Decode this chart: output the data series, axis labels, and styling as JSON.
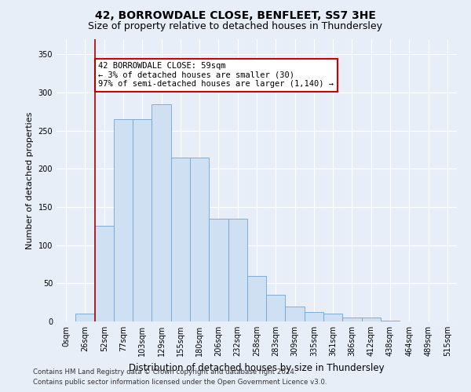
{
  "title": "42, BORROWDALE CLOSE, BENFLEET, SS7 3HE",
  "subtitle": "Size of property relative to detached houses in Thundersley",
  "xlabel": "Distribution of detached houses by size in Thundersley",
  "ylabel": "Number of detached properties",
  "footnote1": "Contains HM Land Registry data © Crown copyright and database right 2024.",
  "footnote2": "Contains public sector information licensed under the Open Government Licence v3.0.",
  "bar_labels": [
    "0sqm",
    "26sqm",
    "52sqm",
    "77sqm",
    "103sqm",
    "129sqm",
    "155sqm",
    "180sqm",
    "206sqm",
    "232sqm",
    "258sqm",
    "283sqm",
    "309sqm",
    "335sqm",
    "361sqm",
    "386sqm",
    "412sqm",
    "438sqm",
    "464sqm",
    "489sqm",
    "515sqm"
  ],
  "bar_values": [
    0,
    10,
    125,
    265,
    265,
    285,
    215,
    215,
    135,
    135,
    60,
    35,
    20,
    12,
    10,
    5,
    5,
    1,
    0,
    0,
    0
  ],
  "bar_color": "#cfe0f3",
  "bar_edge_color": "#6da4d4",
  "red_line_index": 2,
  "red_line_color": "#aa0000",
  "annotation_text": "42 BORROWDALE CLOSE: 59sqm\n← 3% of detached houses are smaller (30)\n97% of semi-detached houses are larger (1,140) →",
  "annotation_box_color": "#ffffff",
  "annotation_box_edge_color": "#cc0000",
  "ylim": [
    0,
    370
  ],
  "yticks": [
    0,
    50,
    100,
    150,
    200,
    250,
    300,
    350
  ],
  "background_color": "#e8eef8",
  "plot_bg_color": "#e8eef8",
  "grid_color": "#ffffff",
  "title_fontsize": 10,
  "subtitle_fontsize": 9,
  "xlabel_fontsize": 8.5,
  "ylabel_fontsize": 8,
  "tick_fontsize": 7,
  "annotation_fontsize": 7.5
}
